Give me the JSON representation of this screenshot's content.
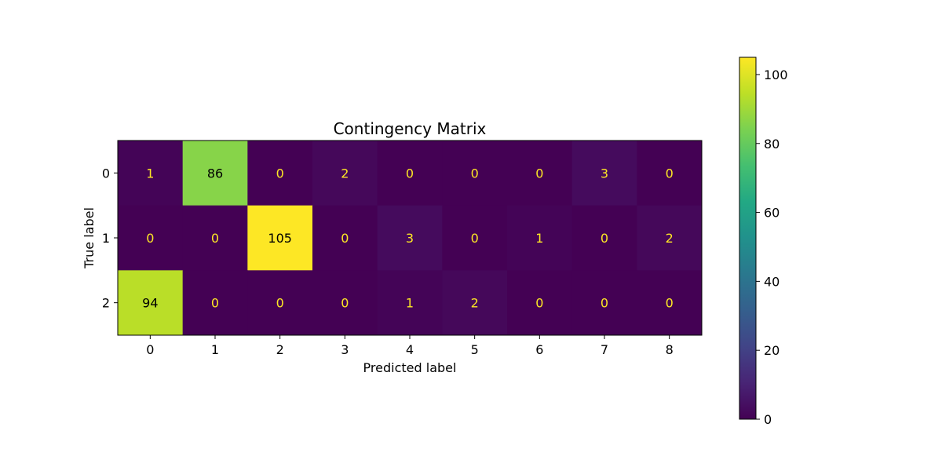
{
  "chart_data": {
    "type": "heatmap",
    "title": "Contingency Matrix",
    "xlabel": "Predicted label",
    "ylabel": "True label",
    "x_categories": [
      "0",
      "1",
      "2",
      "3",
      "4",
      "5",
      "6",
      "7",
      "8"
    ],
    "y_categories": [
      "0",
      "1",
      "2"
    ],
    "values": [
      [
        1,
        86,
        0,
        2,
        0,
        0,
        0,
        3,
        0
      ],
      [
        0,
        0,
        105,
        0,
        3,
        0,
        1,
        0,
        2
      ],
      [
        94,
        0,
        0,
        0,
        1,
        2,
        0,
        0,
        0
      ]
    ],
    "colormap": "viridis",
    "color_range": [
      0,
      105
    ],
    "colorbar_ticks": [
      0,
      20,
      40,
      60,
      80,
      100
    ],
    "colorbar_tick_labels": [
      "0",
      "20",
      "40",
      "60",
      "80",
      "100"
    ],
    "label_color_dark_cell": "#fde725",
    "label_color_bright_cell": "#000000",
    "grid": false
  }
}
